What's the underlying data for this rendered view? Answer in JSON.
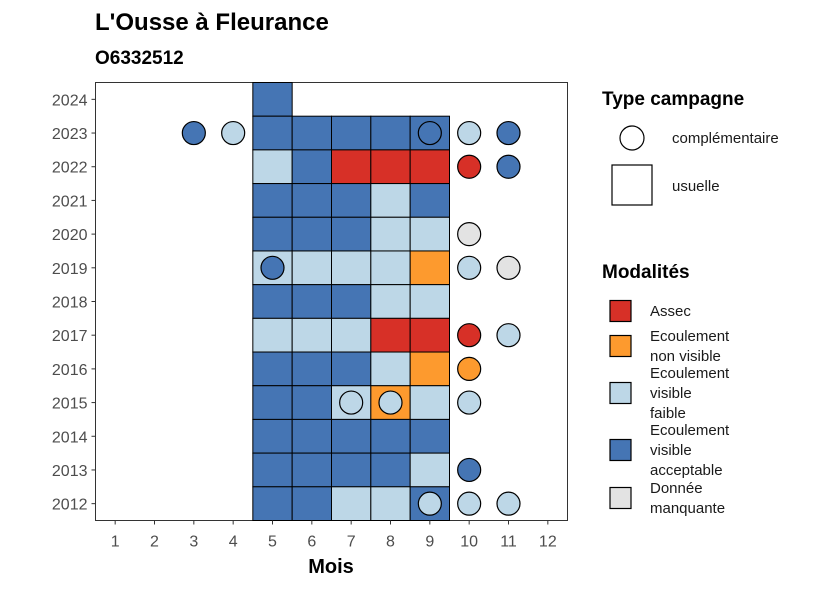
{
  "chart_data": {
    "type": "heatmap",
    "title": "L'Ousse à Fleurance",
    "subtitle": "O6332512",
    "xlabel": "Mois",
    "ylabel": "",
    "x_ticks": [
      "1",
      "2",
      "3",
      "4",
      "5",
      "6",
      "7",
      "8",
      "9",
      "10",
      "11",
      "12"
    ],
    "y_ticks": [
      "2012",
      "2013",
      "2014",
      "2015",
      "2016",
      "2017",
      "2018",
      "2019",
      "2020",
      "2021",
      "2022",
      "2023",
      "2024"
    ],
    "xlim": [
      0.5,
      12.5
    ],
    "ylim": [
      2011.5,
      2024.5
    ],
    "colors": {
      "assec": "#d73027",
      "ecoulement_non_visible": "#fd9a2e",
      "ecoulement_visible_faible": "#bdd7e7",
      "ecoulement_visible_acceptable": "#4575b4",
      "donnee_manquante": "#e3e3e3"
    },
    "legend": {
      "type_title": "Type campagne",
      "type_items": [
        {
          "shape": "circle",
          "label": "complémentaire"
        },
        {
          "shape": "square",
          "label": "usuelle"
        }
      ],
      "mod_title": "Modalités",
      "mod_items": [
        {
          "key": "assec",
          "lines": [
            "Assec"
          ]
        },
        {
          "key": "ecoulement_non_visible",
          "lines": [
            "Ecoulement",
            "non visible"
          ]
        },
        {
          "key": "ecoulement_visible_faible",
          "lines": [
            "Ecoulement",
            "visible",
            "faible"
          ]
        },
        {
          "key": "ecoulement_visible_acceptable",
          "lines": [
            "Ecoulement",
            "visible",
            "acceptable"
          ]
        },
        {
          "key": "donnee_manquante",
          "lines": [
            "Donnée",
            "manquante"
          ]
        }
      ]
    },
    "usuelle": [
      {
        "year": 2024,
        "month": 5,
        "value": "ecoulement_visible_acceptable"
      },
      {
        "year": 2023,
        "month": 5,
        "value": "ecoulement_visible_acceptable"
      },
      {
        "year": 2023,
        "month": 6,
        "value": "ecoulement_visible_acceptable"
      },
      {
        "year": 2023,
        "month": 7,
        "value": "ecoulement_visible_acceptable"
      },
      {
        "year": 2023,
        "month": 8,
        "value": "ecoulement_visible_acceptable"
      },
      {
        "year": 2023,
        "month": 9,
        "value": "ecoulement_visible_acceptable"
      },
      {
        "year": 2022,
        "month": 5,
        "value": "ecoulement_visible_faible"
      },
      {
        "year": 2022,
        "month": 6,
        "value": "ecoulement_visible_acceptable"
      },
      {
        "year": 2022,
        "month": 7,
        "value": "assec"
      },
      {
        "year": 2022,
        "month": 8,
        "value": "assec"
      },
      {
        "year": 2022,
        "month": 9,
        "value": "assec"
      },
      {
        "year": 2021,
        "month": 5,
        "value": "ecoulement_visible_acceptable"
      },
      {
        "year": 2021,
        "month": 6,
        "value": "ecoulement_visible_acceptable"
      },
      {
        "year": 2021,
        "month": 7,
        "value": "ecoulement_visible_acceptable"
      },
      {
        "year": 2021,
        "month": 8,
        "value": "ecoulement_visible_faible"
      },
      {
        "year": 2021,
        "month": 9,
        "value": "ecoulement_visible_acceptable"
      },
      {
        "year": 2020,
        "month": 5,
        "value": "ecoulement_visible_acceptable"
      },
      {
        "year": 2020,
        "month": 6,
        "value": "ecoulement_visible_acceptable"
      },
      {
        "year": 2020,
        "month": 7,
        "value": "ecoulement_visible_acceptable"
      },
      {
        "year": 2020,
        "month": 8,
        "value": "ecoulement_visible_faible"
      },
      {
        "year": 2020,
        "month": 9,
        "value": "ecoulement_visible_faible"
      },
      {
        "year": 2019,
        "month": 5,
        "value": "ecoulement_visible_faible"
      },
      {
        "year": 2019,
        "month": 6,
        "value": "ecoulement_visible_faible"
      },
      {
        "year": 2019,
        "month": 7,
        "value": "ecoulement_visible_faible"
      },
      {
        "year": 2019,
        "month": 8,
        "value": "ecoulement_visible_faible"
      },
      {
        "year": 2019,
        "month": 9,
        "value": "ecoulement_non_visible"
      },
      {
        "year": 2018,
        "month": 5,
        "value": "ecoulement_visible_acceptable"
      },
      {
        "year": 2018,
        "month": 6,
        "value": "ecoulement_visible_acceptable"
      },
      {
        "year": 2018,
        "month": 7,
        "value": "ecoulement_visible_acceptable"
      },
      {
        "year": 2018,
        "month": 8,
        "value": "ecoulement_visible_faible"
      },
      {
        "year": 2018,
        "month": 9,
        "value": "ecoulement_visible_faible"
      },
      {
        "year": 2017,
        "month": 5,
        "value": "ecoulement_visible_faible"
      },
      {
        "year": 2017,
        "month": 6,
        "value": "ecoulement_visible_faible"
      },
      {
        "year": 2017,
        "month": 7,
        "value": "ecoulement_visible_faible"
      },
      {
        "year": 2017,
        "month": 8,
        "value": "assec"
      },
      {
        "year": 2017,
        "month": 9,
        "value": "assec"
      },
      {
        "year": 2016,
        "month": 5,
        "value": "ecoulement_visible_acceptable"
      },
      {
        "year": 2016,
        "month": 6,
        "value": "ecoulement_visible_acceptable"
      },
      {
        "year": 2016,
        "month": 7,
        "value": "ecoulement_visible_acceptable"
      },
      {
        "year": 2016,
        "month": 8,
        "value": "ecoulement_visible_faible"
      },
      {
        "year": 2016,
        "month": 9,
        "value": "ecoulement_non_visible"
      },
      {
        "year": 2015,
        "month": 5,
        "value": "ecoulement_visible_acceptable"
      },
      {
        "year": 2015,
        "month": 6,
        "value": "ecoulement_visible_acceptable"
      },
      {
        "year": 2015,
        "month": 7,
        "value": "ecoulement_visible_faible"
      },
      {
        "year": 2015,
        "month": 8,
        "value": "ecoulement_non_visible"
      },
      {
        "year": 2015,
        "month": 9,
        "value": "ecoulement_visible_faible"
      },
      {
        "year": 2014,
        "month": 5,
        "value": "ecoulement_visible_acceptable"
      },
      {
        "year": 2014,
        "month": 6,
        "value": "ecoulement_visible_acceptable"
      },
      {
        "year": 2014,
        "month": 7,
        "value": "ecoulement_visible_acceptable"
      },
      {
        "year": 2014,
        "month": 8,
        "value": "ecoulement_visible_acceptable"
      },
      {
        "year": 2014,
        "month": 9,
        "value": "ecoulement_visible_acceptable"
      },
      {
        "year": 2013,
        "month": 5,
        "value": "ecoulement_visible_acceptable"
      },
      {
        "year": 2013,
        "month": 6,
        "value": "ecoulement_visible_acceptable"
      },
      {
        "year": 2013,
        "month": 7,
        "value": "ecoulement_visible_acceptable"
      },
      {
        "year": 2013,
        "month": 8,
        "value": "ecoulement_visible_acceptable"
      },
      {
        "year": 2013,
        "month": 9,
        "value": "ecoulement_visible_faible"
      },
      {
        "year": 2012,
        "month": 5,
        "value": "ecoulement_visible_acceptable"
      },
      {
        "year": 2012,
        "month": 6,
        "value": "ecoulement_visible_acceptable"
      },
      {
        "year": 2012,
        "month": 7,
        "value": "ecoulement_visible_faible"
      },
      {
        "year": 2012,
        "month": 8,
        "value": "ecoulement_visible_faible"
      },
      {
        "year": 2012,
        "month": 9,
        "value": "ecoulement_visible_acceptable"
      }
    ],
    "complementaire": [
      {
        "year": 2023,
        "month": 3,
        "value": "ecoulement_visible_acceptable"
      },
      {
        "year": 2023,
        "month": 4,
        "value": "ecoulement_visible_faible"
      },
      {
        "year": 2023,
        "month": 9,
        "value": "ecoulement_visible_acceptable"
      },
      {
        "year": 2023,
        "month": 10,
        "value": "ecoulement_visible_faible"
      },
      {
        "year": 2023,
        "month": 11,
        "value": "ecoulement_visible_acceptable"
      },
      {
        "year": 2022,
        "month": 10,
        "value": "assec"
      },
      {
        "year": 2022,
        "month": 11,
        "value": "ecoulement_visible_acceptable"
      },
      {
        "year": 2020,
        "month": 10,
        "value": "donnee_manquante"
      },
      {
        "year": 2019,
        "month": 5,
        "value": "ecoulement_visible_acceptable"
      },
      {
        "year": 2019,
        "month": 10,
        "value": "ecoulement_visible_faible"
      },
      {
        "year": 2019,
        "month": 11,
        "value": "donnee_manquante"
      },
      {
        "year": 2017,
        "month": 10,
        "value": "assec"
      },
      {
        "year": 2017,
        "month": 11,
        "value": "ecoulement_visible_faible"
      },
      {
        "year": 2016,
        "month": 10,
        "value": "ecoulement_non_visible"
      },
      {
        "year": 2015,
        "month": 7,
        "value": "ecoulement_visible_faible"
      },
      {
        "year": 2015,
        "month": 8,
        "value": "ecoulement_visible_faible"
      },
      {
        "year": 2015,
        "month": 10,
        "value": "ecoulement_visible_faible"
      },
      {
        "year": 2013,
        "month": 10,
        "value": "ecoulement_visible_acceptable"
      },
      {
        "year": 2012,
        "month": 9,
        "value": "ecoulement_visible_faible"
      },
      {
        "year": 2012,
        "month": 10,
        "value": "ecoulement_visible_faible"
      },
      {
        "year": 2012,
        "month": 11,
        "value": "ecoulement_visible_faible"
      }
    ]
  }
}
